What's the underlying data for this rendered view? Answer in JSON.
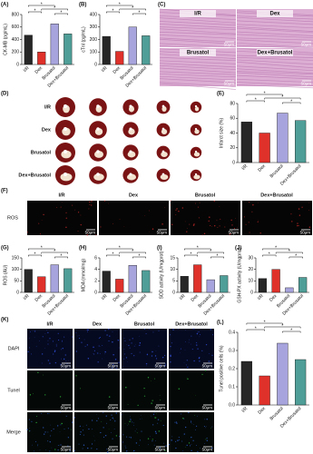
{
  "image_panels": {
    "C": {
      "label": "(C)",
      "titles": [
        "I/R",
        "Dex",
        "Brusatol",
        "Dex+Brusatol"
      ],
      "scale": "50μm"
    },
    "D": {
      "label": "(D)",
      "rows": [
        "I/R",
        "Dex",
        "Brusatol",
        "Dex+Brusatol"
      ]
    },
    "F": {
      "label": "(F)",
      "columns": [
        "I/R",
        "Dex",
        "Brusatol",
        "Dex+Brusatol"
      ],
      "row": "ROS",
      "scale": "50μm"
    },
    "K": {
      "label": "(K)",
      "columns": [
        "I/R",
        "Dex",
        "Brusatol",
        "Dex+Brusatol"
      ],
      "rows": [
        "DAPI",
        "Tunel",
        "Merge"
      ],
      "scale": "50μm"
    }
  },
  "chart_data": [
    {
      "type": "bar",
      "panel_label": "(A)",
      "y_label": "CK-MB (pg/mL)",
      "categories": [
        "I/R",
        "Dex",
        "Brusatol",
        "Dex+Brusatol"
      ],
      "values": [
        470,
        200,
        650,
        490
      ],
      "colors": [
        "#262626",
        "#e0302a",
        "#a7a3dc",
        "#4f9f98"
      ],
      "ylim": [
        0,
        800
      ],
      "yticks": [
        0,
        200,
        400,
        600,
        800
      ],
      "significance": [
        "*",
        "*",
        "*",
        "*"
      ]
    },
    {
      "type": "bar",
      "panel_label": "(B)",
      "y_label": "cTnI (pg/mL)",
      "categories": [
        "I/R",
        "Dex",
        "Brusatol",
        "Dex+Brusatol"
      ],
      "values": [
        225,
        105,
        300,
        230
      ],
      "colors": [
        "#262626",
        "#e0302a",
        "#a7a3dc",
        "#4f9f98"
      ],
      "ylim": [
        0,
        400
      ],
      "yticks": [
        0,
        100,
        200,
        300,
        400
      ],
      "significance": [
        "*",
        "*",
        "*",
        "*"
      ]
    },
    {
      "type": "bar",
      "panel_label": "(E)",
      "y_label": "Infarct size (%)",
      "categories": [
        "I/R",
        "Dex",
        "Brusatol",
        "Dex+Brusatol"
      ],
      "values": [
        55,
        40,
        67,
        57
      ],
      "colors": [
        "#262626",
        "#e0302a",
        "#a7a3dc",
        "#4f9f98"
      ],
      "ylim": [
        0,
        80
      ],
      "yticks": [
        0,
        20,
        40,
        60,
        80
      ],
      "significance": [
        "*",
        "*",
        "*",
        "*"
      ]
    },
    {
      "type": "bar",
      "panel_label": "(G)",
      "y_label": "ROS (AU)",
      "categories": [
        "I/R",
        "Dex",
        "Brusatol",
        "Dex+Brusatol"
      ],
      "values": [
        100,
        68,
        120,
        103
      ],
      "colors": [
        "#262626",
        "#e0302a",
        "#a7a3dc",
        "#4f9f98"
      ],
      "ylim": [
        0,
        150
      ],
      "yticks": [
        0,
        50,
        100,
        150
      ],
      "significance": [
        "*",
        "*",
        "*",
        "*"
      ]
    },
    {
      "type": "bar",
      "panel_label": "(H)",
      "y_label": "MDA (mmol/mg)",
      "categories": [
        "I/R",
        "Dex",
        "Brusatol",
        "Dex+Brusatol"
      ],
      "values": [
        3.7,
        2.3,
        4.7,
        3.8
      ],
      "colors": [
        "#262626",
        "#e0302a",
        "#a7a3dc",
        "#4f9f98"
      ],
      "ylim": [
        0,
        6
      ],
      "yticks": [
        0,
        2,
        4,
        6
      ],
      "significance": [
        "*",
        "*",
        "*",
        "*"
      ]
    },
    {
      "type": "bar",
      "panel_label": "(I)",
      "y_label": "SOD activity (U/mgprot)",
      "categories": [
        "I/R",
        "Dex",
        "Brusatol",
        "Dex+Brusatol"
      ],
      "values": [
        7,
        12,
        5.5,
        7.3
      ],
      "colors": [
        "#262626",
        "#e0302a",
        "#a7a3dc",
        "#4f9f98"
      ],
      "ylim": [
        0,
        15
      ],
      "yticks": [
        0,
        5,
        10,
        15
      ],
      "significance": [
        "*",
        "*",
        "*",
        "*"
      ]
    },
    {
      "type": "bar",
      "panel_label": "(J)",
      "y_label": "GSH-PX activity (U/mgprot)",
      "categories": [
        "I/R",
        "Dex",
        "Brusatol",
        "Dex+Brusatol"
      ],
      "values": [
        12,
        20,
        4,
        13
      ],
      "colors": [
        "#262626",
        "#e0302a",
        "#a7a3dc",
        "#4f9f98"
      ],
      "ylim": [
        0,
        30
      ],
      "yticks": [
        0,
        10,
        20,
        30
      ],
      "significance": [
        "*",
        "*",
        "*",
        "*"
      ]
    },
    {
      "type": "bar",
      "panel_label": "(L)",
      "y_label": "Tunel positive cells (%)",
      "categories": [
        "I/R",
        "Dex",
        "Brusatol",
        "Dex+Brusatol"
      ],
      "values": [
        0.24,
        0.16,
        0.34,
        0.25
      ],
      "colors": [
        "#262626",
        "#e0302a",
        "#a7a3dc",
        "#4f9f98"
      ],
      "ylim": [
        0,
        0.4
      ],
      "yticks": [
        {
          "value": 0,
          "label": "0.0"
        },
        0.1,
        0.2,
        0.3,
        0.4
      ],
      "significance": [
        "*",
        "*",
        "*",
        "*"
      ]
    }
  ]
}
